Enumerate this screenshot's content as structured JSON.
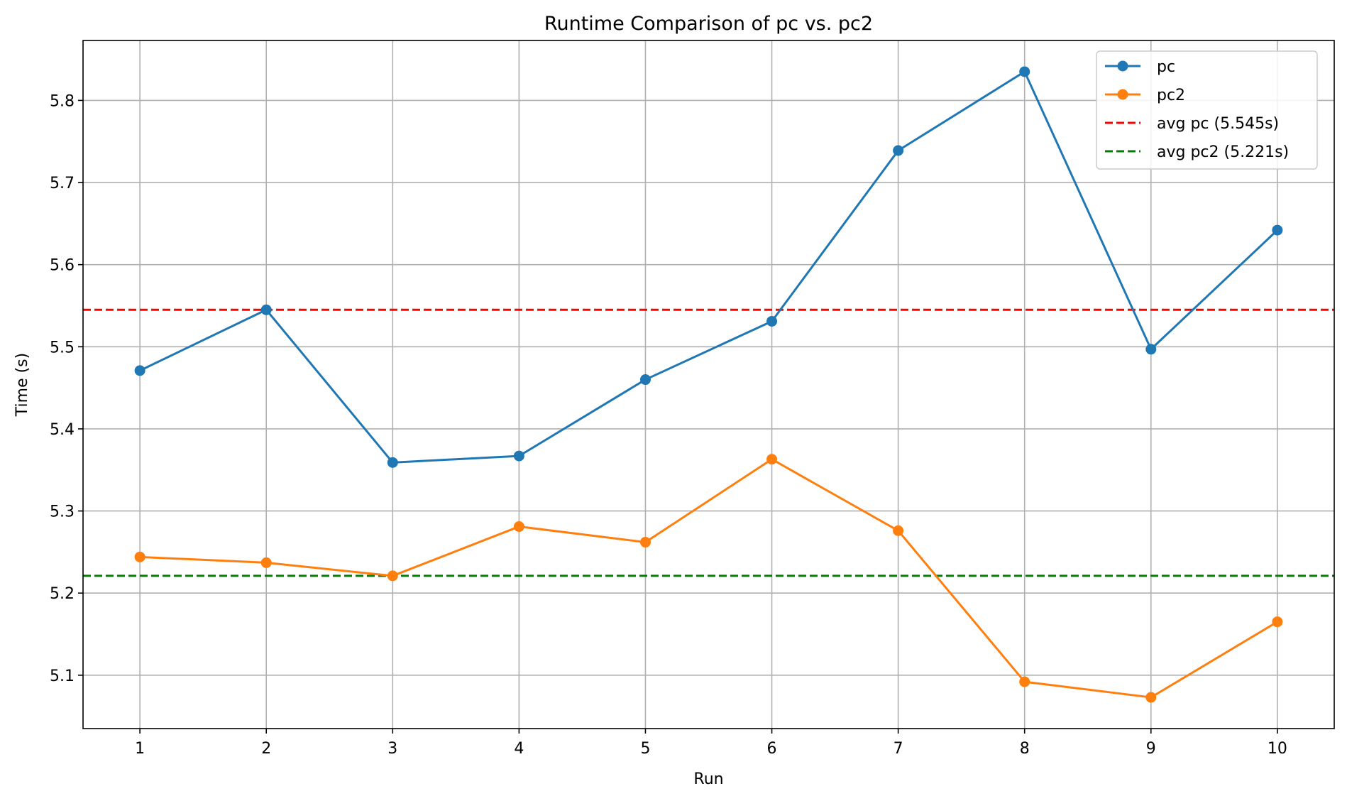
{
  "chart_data": {
    "type": "line",
    "title": "Runtime Comparison of pc vs. pc2",
    "xlabel": "Run",
    "ylabel": "Time (s)",
    "x": [
      1,
      2,
      3,
      4,
      5,
      6,
      7,
      8,
      9,
      10
    ],
    "series": [
      {
        "name": "pc",
        "color": "#1f77b4",
        "marker": "circle",
        "values": [
          5.471,
          5.545,
          5.359,
          5.367,
          5.46,
          5.531,
          5.739,
          5.835,
          5.497,
          5.642
        ]
      },
      {
        "name": "pc2",
        "color": "#ff7f0e",
        "marker": "circle",
        "values": [
          5.244,
          5.237,
          5.221,
          5.281,
          5.262,
          5.363,
          5.276,
          5.092,
          5.073,
          5.165
        ]
      }
    ],
    "reference_lines": [
      {
        "name": "avg pc (5.545s)",
        "value": 5.545,
        "color": "#ff0000",
        "style": "dashed"
      },
      {
        "name": "avg pc2 (5.221s)",
        "value": 5.221,
        "color": "#008000",
        "style": "dashed"
      }
    ],
    "xlim": [
      0.55,
      10.45
    ],
    "ylim": [
      5.035,
      5.873
    ],
    "x_ticks": [
      "1",
      "2",
      "3",
      "4",
      "5",
      "6",
      "7",
      "8",
      "9",
      "10"
    ],
    "x_tick_values": [
      1,
      2,
      3,
      4,
      5,
      6,
      7,
      8,
      9,
      10
    ],
    "y_ticks": [
      "5.1",
      "5.2",
      "5.3",
      "5.4",
      "5.5",
      "5.6",
      "5.7",
      "5.8"
    ],
    "y_tick_values": [
      5.1,
      5.2,
      5.3,
      5.4,
      5.5,
      5.6,
      5.7,
      5.8
    ],
    "grid": true,
    "legend_position": "top-right"
  }
}
